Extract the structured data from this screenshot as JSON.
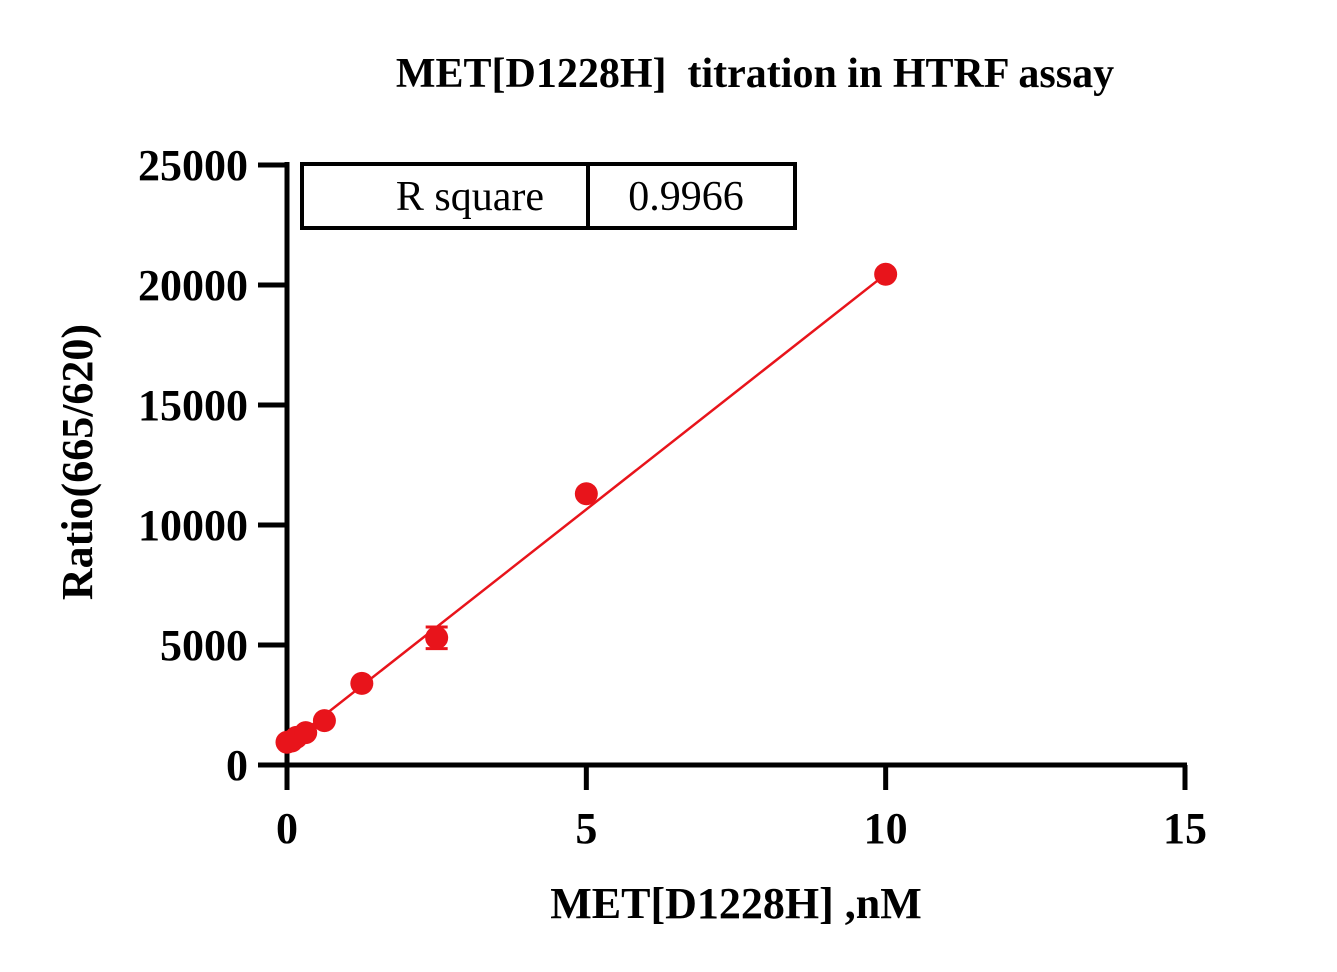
{
  "chart_data": {
    "type": "scatter",
    "title": "MET[D1228H]  titration in HTRF assay",
    "xlabel": "MET[D1228H] ,nM",
    "ylabel": "Ratio(665/620)",
    "xlim": [
      0,
      15
    ],
    "ylim": [
      0,
      25000
    ],
    "x_ticks": [
      "0",
      "5",
      "10",
      "15"
    ],
    "y_ticks": [
      "0",
      "5000",
      "10000",
      "15000",
      "20000",
      "25000"
    ],
    "x_tick_values": [
      0,
      5,
      10,
      15
    ],
    "y_tick_values": [
      0,
      5000,
      10000,
      15000,
      20000,
      25000
    ],
    "series": [
      {
        "x": [
          0.0,
          0.0781,
          0.156,
          0.3125,
          0.625,
          1.25,
          2.5,
          5,
          10
        ],
        "y": [
          950,
          1000,
          1150,
          1350,
          1850,
          3400,
          5300,
          11300,
          20450
        ],
        "error": [
          0,
          0,
          0,
          0,
          0,
          0,
          450,
          0,
          0
        ],
        "color": "#e8141b"
      }
    ],
    "fit_line": {
      "type": "linear",
      "x": [
        0,
        10
      ],
      "y": [
        850,
        20450
      ],
      "color": "#e8141b"
    },
    "annotation_table": {
      "label": "R square",
      "value": "0.9966"
    },
    "grid": false,
    "legend": "none"
  }
}
